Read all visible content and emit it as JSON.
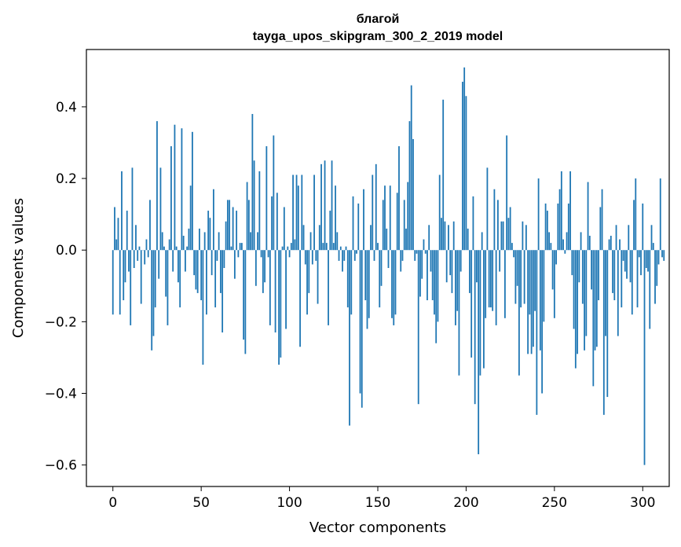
{
  "chart_data": {
    "type": "bar",
    "title_line1": "благой",
    "title_line2": "tayga_upos_skipgram_300_2_2019 model",
    "xlabel": "Vector components",
    "ylabel": "Components values",
    "xlim": [
      -15,
      315
    ],
    "ylim": [
      -0.66,
      0.56
    ],
    "xticks": [
      0,
      50,
      100,
      150,
      200,
      250,
      300
    ],
    "yticks": [
      -0.6,
      -0.4,
      -0.2,
      0.0,
      0.2,
      0.4
    ],
    "ytick_labels": [
      "−0.6",
      "−0.4",
      "−0.2",
      "0.0",
      "0.2",
      "0.4"
    ],
    "bar_color": "#1f77b4",
    "values": [
      -0.18,
      0.12,
      0.03,
      0.09,
      -0.18,
      0.22,
      -0.14,
      -0.09,
      0.11,
      -0.06,
      -0.21,
      0.23,
      -0.05,
      0.07,
      -0.03,
      0.01,
      -0.15,
      0.0,
      -0.04,
      0.03,
      -0.02,
      0.14,
      -0.28,
      -0.24,
      -0.16,
      0.36,
      -0.08,
      0.23,
      0.05,
      0.01,
      -0.13,
      -0.21,
      0.03,
      0.29,
      -0.06,
      0.35,
      0.01,
      -0.09,
      -0.16,
      0.34,
      0.04,
      -0.06,
      0.01,
      0.06,
      0.18,
      0.33,
      -0.07,
      -0.11,
      -0.12,
      0.06,
      -0.14,
      -0.32,
      0.05,
      -0.18,
      0.11,
      0.09,
      -0.07,
      0.17,
      -0.16,
      -0.03,
      0.05,
      -0.12,
      -0.23,
      -0.05,
      0.08,
      0.14,
      0.14,
      0.01,
      0.12,
      -0.08,
      0.11,
      -0.02,
      0.02,
      0.02,
      -0.25,
      -0.29,
      0.19,
      0.14,
      0.05,
      0.38,
      0.25,
      -0.1,
      0.05,
      0.22,
      -0.02,
      -0.12,
      -0.09,
      0.29,
      -0.02,
      -0.21,
      0.15,
      0.32,
      -0.23,
      0.16,
      -0.32,
      -0.3,
      0.01,
      0.12,
      -0.22,
      0.01,
      -0.02,
      0.02,
      0.21,
      0.03,
      0.21,
      0.18,
      -0.27,
      0.21,
      0.07,
      -0.04,
      -0.18,
      -0.12,
      0.05,
      -0.04,
      0.21,
      -0.03,
      -0.15,
      0.07,
      0.24,
      0.02,
      0.25,
      0.02,
      -0.21,
      0.11,
      0.25,
      0.02,
      0.18,
      0.05,
      -0.03,
      0.01,
      -0.06,
      -0.03,
      0.01,
      -0.16,
      -0.49,
      -0.18,
      0.15,
      -0.03,
      -0.01,
      0.13,
      -0.4,
      -0.44,
      0.17,
      -0.14,
      -0.22,
      -0.19,
      0.07,
      0.21,
      -0.03,
      0.24,
      0.02,
      -0.16,
      -0.1,
      0.14,
      0.18,
      0.06,
      -0.05,
      0.18,
      -0.19,
      -0.21,
      -0.18,
      0.16,
      0.29,
      -0.06,
      -0.03,
      0.14,
      0.06,
      0.19,
      0.36,
      0.46,
      0.31,
      -0.03,
      -0.01,
      -0.43,
      -0.13,
      -0.08,
      0.03,
      -0.01,
      -0.14,
      0.07,
      -0.06,
      -0.14,
      -0.18,
      -0.26,
      -0.2,
      0.21,
      0.09,
      0.42,
      0.08,
      -0.09,
      0.07,
      -0.07,
      -0.12,
      0.08,
      -0.21,
      -0.17,
      -0.35,
      -0.06,
      0.47,
      0.51,
      0.43,
      0.06,
      -0.12,
      -0.3,
      0.15,
      -0.43,
      -0.09,
      -0.57,
      -0.35,
      0.05,
      -0.33,
      -0.19,
      0.23,
      -0.16,
      -0.16,
      -0.17,
      0.17,
      -0.21,
      0.14,
      -0.06,
      0.08,
      0.08,
      -0.19,
      0.32,
      0.09,
      0.12,
      0.02,
      -0.02,
      -0.15,
      -0.1,
      -0.35,
      -0.16,
      0.08,
      -0.15,
      0.07,
      -0.29,
      -0.18,
      -0.29,
      -0.27,
      -0.17,
      -0.46,
      0.2,
      -0.28,
      -0.4,
      -0.2,
      0.13,
      0.11,
      0.05,
      0.02,
      -0.11,
      -0.19,
      -0.04,
      0.13,
      0.17,
      0.22,
      0.03,
      -0.01,
      0.05,
      0.13,
      0.22,
      -0.07,
      -0.22,
      -0.33,
      -0.29,
      -0.09,
      0.05,
      -0.15,
      -0.28,
      -0.24,
      0.19,
      0.04,
      -0.11,
      -0.38,
      -0.28,
      -0.27,
      -0.14,
      0.12,
      0.17,
      -0.46,
      -0.24,
      -0.41,
      0.03,
      0.04,
      -0.12,
      -0.14,
      0.07,
      -0.24,
      0.03,
      -0.16,
      -0.03,
      -0.06,
      -0.08,
      0.07,
      -0.09,
      -0.18,
      0.14,
      0.2,
      -0.16,
      -0.02,
      -0.07,
      0.13,
      -0.6,
      -0.05,
      -0.06,
      -0.22,
      0.07,
      0.02,
      -0.15,
      -0.1,
      -0.04,
      0.2,
      -0.02,
      -0.03
    ]
  }
}
